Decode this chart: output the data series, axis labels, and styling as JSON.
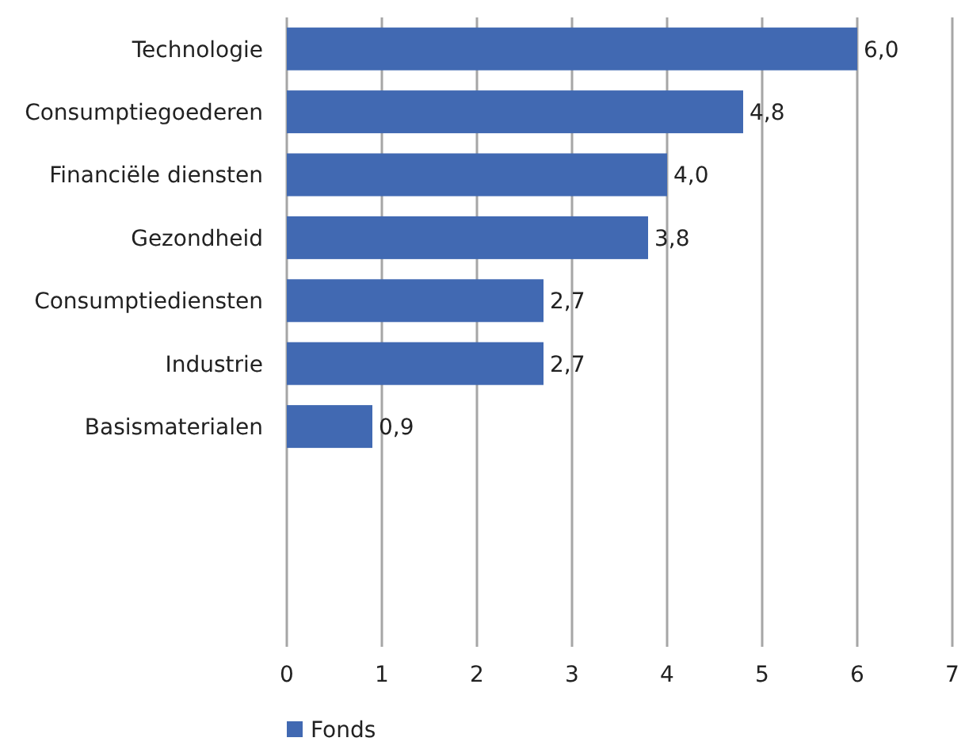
{
  "chart_data": {
    "type": "bar",
    "orientation": "horizontal",
    "categories": [
      "Technologie",
      "Consumptiegoederen",
      "Financiële diensten",
      "Gezondheid",
      "Consumptiediensten",
      "Industrie",
      "Basismaterialen",
      null,
      null,
      null
    ],
    "series": [
      {
        "name": "Fonds",
        "color": "#4169b2",
        "values": [
          6.0,
          4.8,
          4.0,
          3.8,
          2.7,
          2.7,
          0.9,
          null,
          null,
          null
        ],
        "value_labels": [
          "6,0",
          "4,8",
          "4,0",
          "3,8",
          "2,7",
          "2,7",
          "0,9",
          null,
          null,
          null
        ]
      }
    ],
    "xlim": [
      0,
      7
    ],
    "xticks": [
      0,
      1,
      2,
      3,
      4,
      5,
      6,
      7
    ],
    "grid": "x",
    "legend": "bottom left"
  }
}
